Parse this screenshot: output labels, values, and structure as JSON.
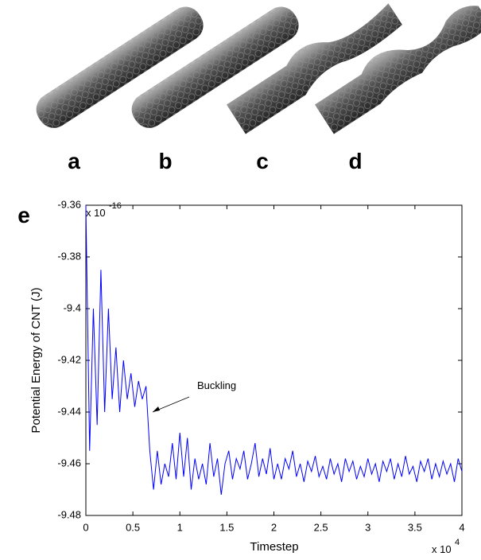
{
  "panels": [
    "a",
    "b",
    "c",
    "d"
  ],
  "chart_data": {
    "type": "line",
    "panel_label": "e",
    "xlabel": "Timestep",
    "ylabel": "Potential Energy of CNT (J)",
    "annotation": "Buckling",
    "y_multiplier": {
      "base": "x 10",
      "exponent": "-16"
    },
    "x_multiplier": {
      "base": "x 10",
      "exponent": "4"
    },
    "xlim": [
      0,
      4
    ],
    "xticks": [
      0,
      0.5,
      1,
      1.5,
      2,
      2.5,
      3,
      3.5,
      4
    ],
    "ylim": [
      -9.48,
      -9.36
    ],
    "yticks": [
      -9.48,
      -9.46,
      -9.44,
      -9.42,
      -9.4,
      -9.38,
      -9.36
    ],
    "x": [
      0,
      0.04,
      0.08,
      0.12,
      0.16,
      0.2,
      0.24,
      0.28,
      0.32,
      0.36,
      0.4,
      0.44,
      0.48,
      0.52,
      0.56,
      0.6,
      0.64,
      0.68,
      0.72,
      0.76,
      0.8,
      0.84,
      0.88,
      0.92,
      0.96,
      1,
      1.04,
      1.08,
      1.12,
      1.16,
      1.2,
      1.24,
      1.28,
      1.32,
      1.36,
      1.4,
      1.44,
      1.48,
      1.52,
      1.56,
      1.6,
      1.64,
      1.68,
      1.72,
      1.76,
      1.8,
      1.84,
      1.88,
      1.92,
      1.96,
      2,
      2.04,
      2.08,
      2.12,
      2.16,
      2.2,
      2.24,
      2.28,
      2.32,
      2.36,
      2.4,
      2.44,
      2.48,
      2.52,
      2.56,
      2.6,
      2.64,
      2.68,
      2.72,
      2.76,
      2.8,
      2.84,
      2.88,
      2.92,
      2.96,
      3,
      3.04,
      3.08,
      3.12,
      3.16,
      3.2,
      3.24,
      3.28,
      3.32,
      3.36,
      3.4,
      3.44,
      3.48,
      3.52,
      3.56,
      3.6,
      3.64,
      3.68,
      3.72,
      3.76,
      3.8,
      3.84,
      3.88,
      3.92,
      3.96,
      4
    ],
    "series": [
      {
        "color": "#0000ff",
        "values": [
          -9.36,
          -9.455,
          -9.4,
          -9.445,
          -9.385,
          -9.44,
          -9.4,
          -9.435,
          -9.415,
          -9.44,
          -9.42,
          -9.435,
          -9.425,
          -9.438,
          -9.428,
          -9.435,
          -9.43,
          -9.455,
          -9.47,
          -9.455,
          -9.468,
          -9.46,
          -9.465,
          -9.452,
          -9.466,
          -9.448,
          -9.465,
          -9.45,
          -9.47,
          -9.458,
          -9.466,
          -9.46,
          -9.468,
          -9.452,
          -9.465,
          -9.458,
          -9.472,
          -9.46,
          -9.455,
          -9.466,
          -9.458,
          -9.462,
          -9.455,
          -9.466,
          -9.46,
          -9.452,
          -9.465,
          -9.458,
          -9.464,
          -9.454,
          -9.466,
          -9.46,
          -9.466,
          -9.458,
          -9.462,
          -9.455,
          -9.465,
          -9.46,
          -9.467,
          -9.459,
          -9.463,
          -9.457,
          -9.465,
          -9.461,
          -9.466,
          -9.458,
          -9.464,
          -9.46,
          -9.467,
          -9.458,
          -9.463,
          -9.459,
          -9.466,
          -9.461,
          -9.465,
          -9.458,
          -9.464,
          -9.46,
          -9.467,
          -9.459,
          -9.463,
          -9.458,
          -9.466,
          -9.46,
          -9.465,
          -9.457,
          -9.464,
          -9.461,
          -9.467,
          -9.459,
          -9.463,
          -9.458,
          -9.466,
          -9.46,
          -9.465,
          -9.459,
          -9.464,
          -9.46,
          -9.467,
          -9.458,
          -9.463
        ]
      }
    ]
  }
}
